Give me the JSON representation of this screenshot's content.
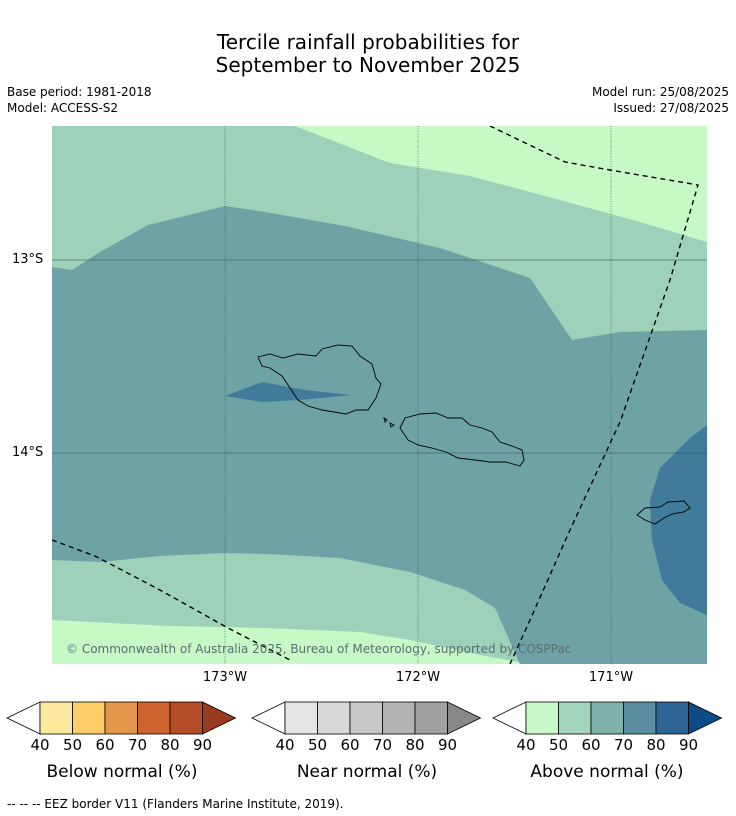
{
  "header": {
    "title_line1": "Tercile rainfall probabilities for",
    "title_line2": "September to November 2025",
    "base_period": "Base period: 1981-2018",
    "model": "Model: ACCESS-S2",
    "model_run": "Model run: 25/08/2025",
    "issued": "Issued: 27/08/2025"
  },
  "map": {
    "lat_labels": [
      "13°S",
      "14°S"
    ],
    "lon_labels": [
      "173°W",
      "172°W",
      "171°W"
    ],
    "copyright": "© Commonwealth of Australia 2025, Bureau of Meteorology, supported by COSPPac",
    "colors": {
      "above_50": "#c7f9c7",
      "above_60": "#9dd1b9",
      "above_70": "#6ea3a6",
      "above_80": "#417b9b"
    }
  },
  "legend": {
    "ticks": [
      "40",
      "50",
      "60",
      "70",
      "80",
      "90"
    ],
    "below": {
      "label": "Below normal (%)",
      "colors": [
        "#ffffff",
        "#fde99e",
        "#fdcd68",
        "#e3964a",
        "#cf6330",
        "#b44c27",
        "#9a3a1e"
      ]
    },
    "near": {
      "label": "Near normal (%)",
      "colors": [
        "#ffffff",
        "#e6e6e6",
        "#d8d8d8",
        "#c8c8c8",
        "#b4b4b4",
        "#a0a0a0",
        "#888888"
      ]
    },
    "above": {
      "label": "Above normal (%)",
      "colors": [
        "#ffffff",
        "#c8f8c8",
        "#a3d5bc",
        "#80b3aa",
        "#5a8fa2",
        "#2f6494",
        "#0e4a86"
      ]
    }
  },
  "footer": {
    "eez_note": "--  --  -- EEZ border V11 (Flanders Marine Institute, 2019)."
  }
}
